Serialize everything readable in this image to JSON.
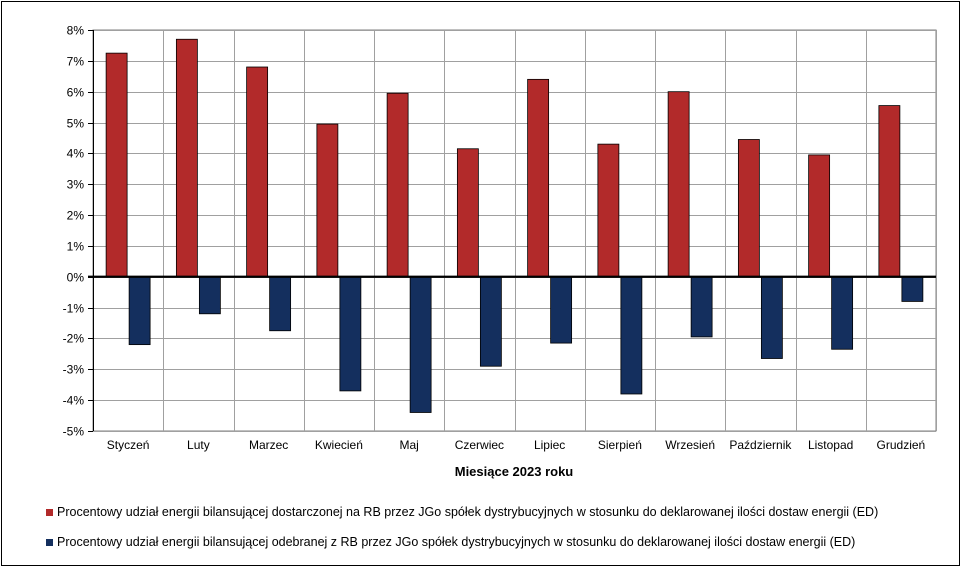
{
  "chart_data": {
    "type": "bar",
    "xlabel": "Miesiące 2023  roku",
    "ylabel": "",
    "ylim": [
      -5,
      8
    ],
    "ytick_step": 1,
    "ytick_format": "percent",
    "grid": true,
    "legend_position": "bottom",
    "categories": [
      "Styczeń",
      "Luty",
      "Marzec",
      "Kwiecień",
      "Maj",
      "Czerwiec",
      "Lipiec",
      "Sierpień",
      "Wrzesień",
      "Październik",
      "Listopad",
      "Grudzień"
    ],
    "series": [
      {
        "name": "Procentowy udział energii bilansującej dostarczonej na RB przez JGo spółek dystrybucyjnych w stosunku do deklarowanej ilości dostaw energii (ED)",
        "color": "#b22a2a",
        "values": [
          7.25,
          7.7,
          6.8,
          4.95,
          5.95,
          4.15,
          6.4,
          4.3,
          6.0,
          4.45,
          3.95,
          5.55
        ]
      },
      {
        "name": "Procentowy udział energii bilansującej odebranej z RB przez JGo spółek dystrybucyjnych w stosunku do deklarowanej ilości dostaw energii (ED)",
        "color": "#142f5e",
        "values": [
          -2.2,
          -1.2,
          -1.75,
          -3.7,
          -4.4,
          -2.9,
          -2.15,
          -3.8,
          -1.95,
          -2.65,
          -2.35,
          -0.8
        ]
      }
    ]
  }
}
